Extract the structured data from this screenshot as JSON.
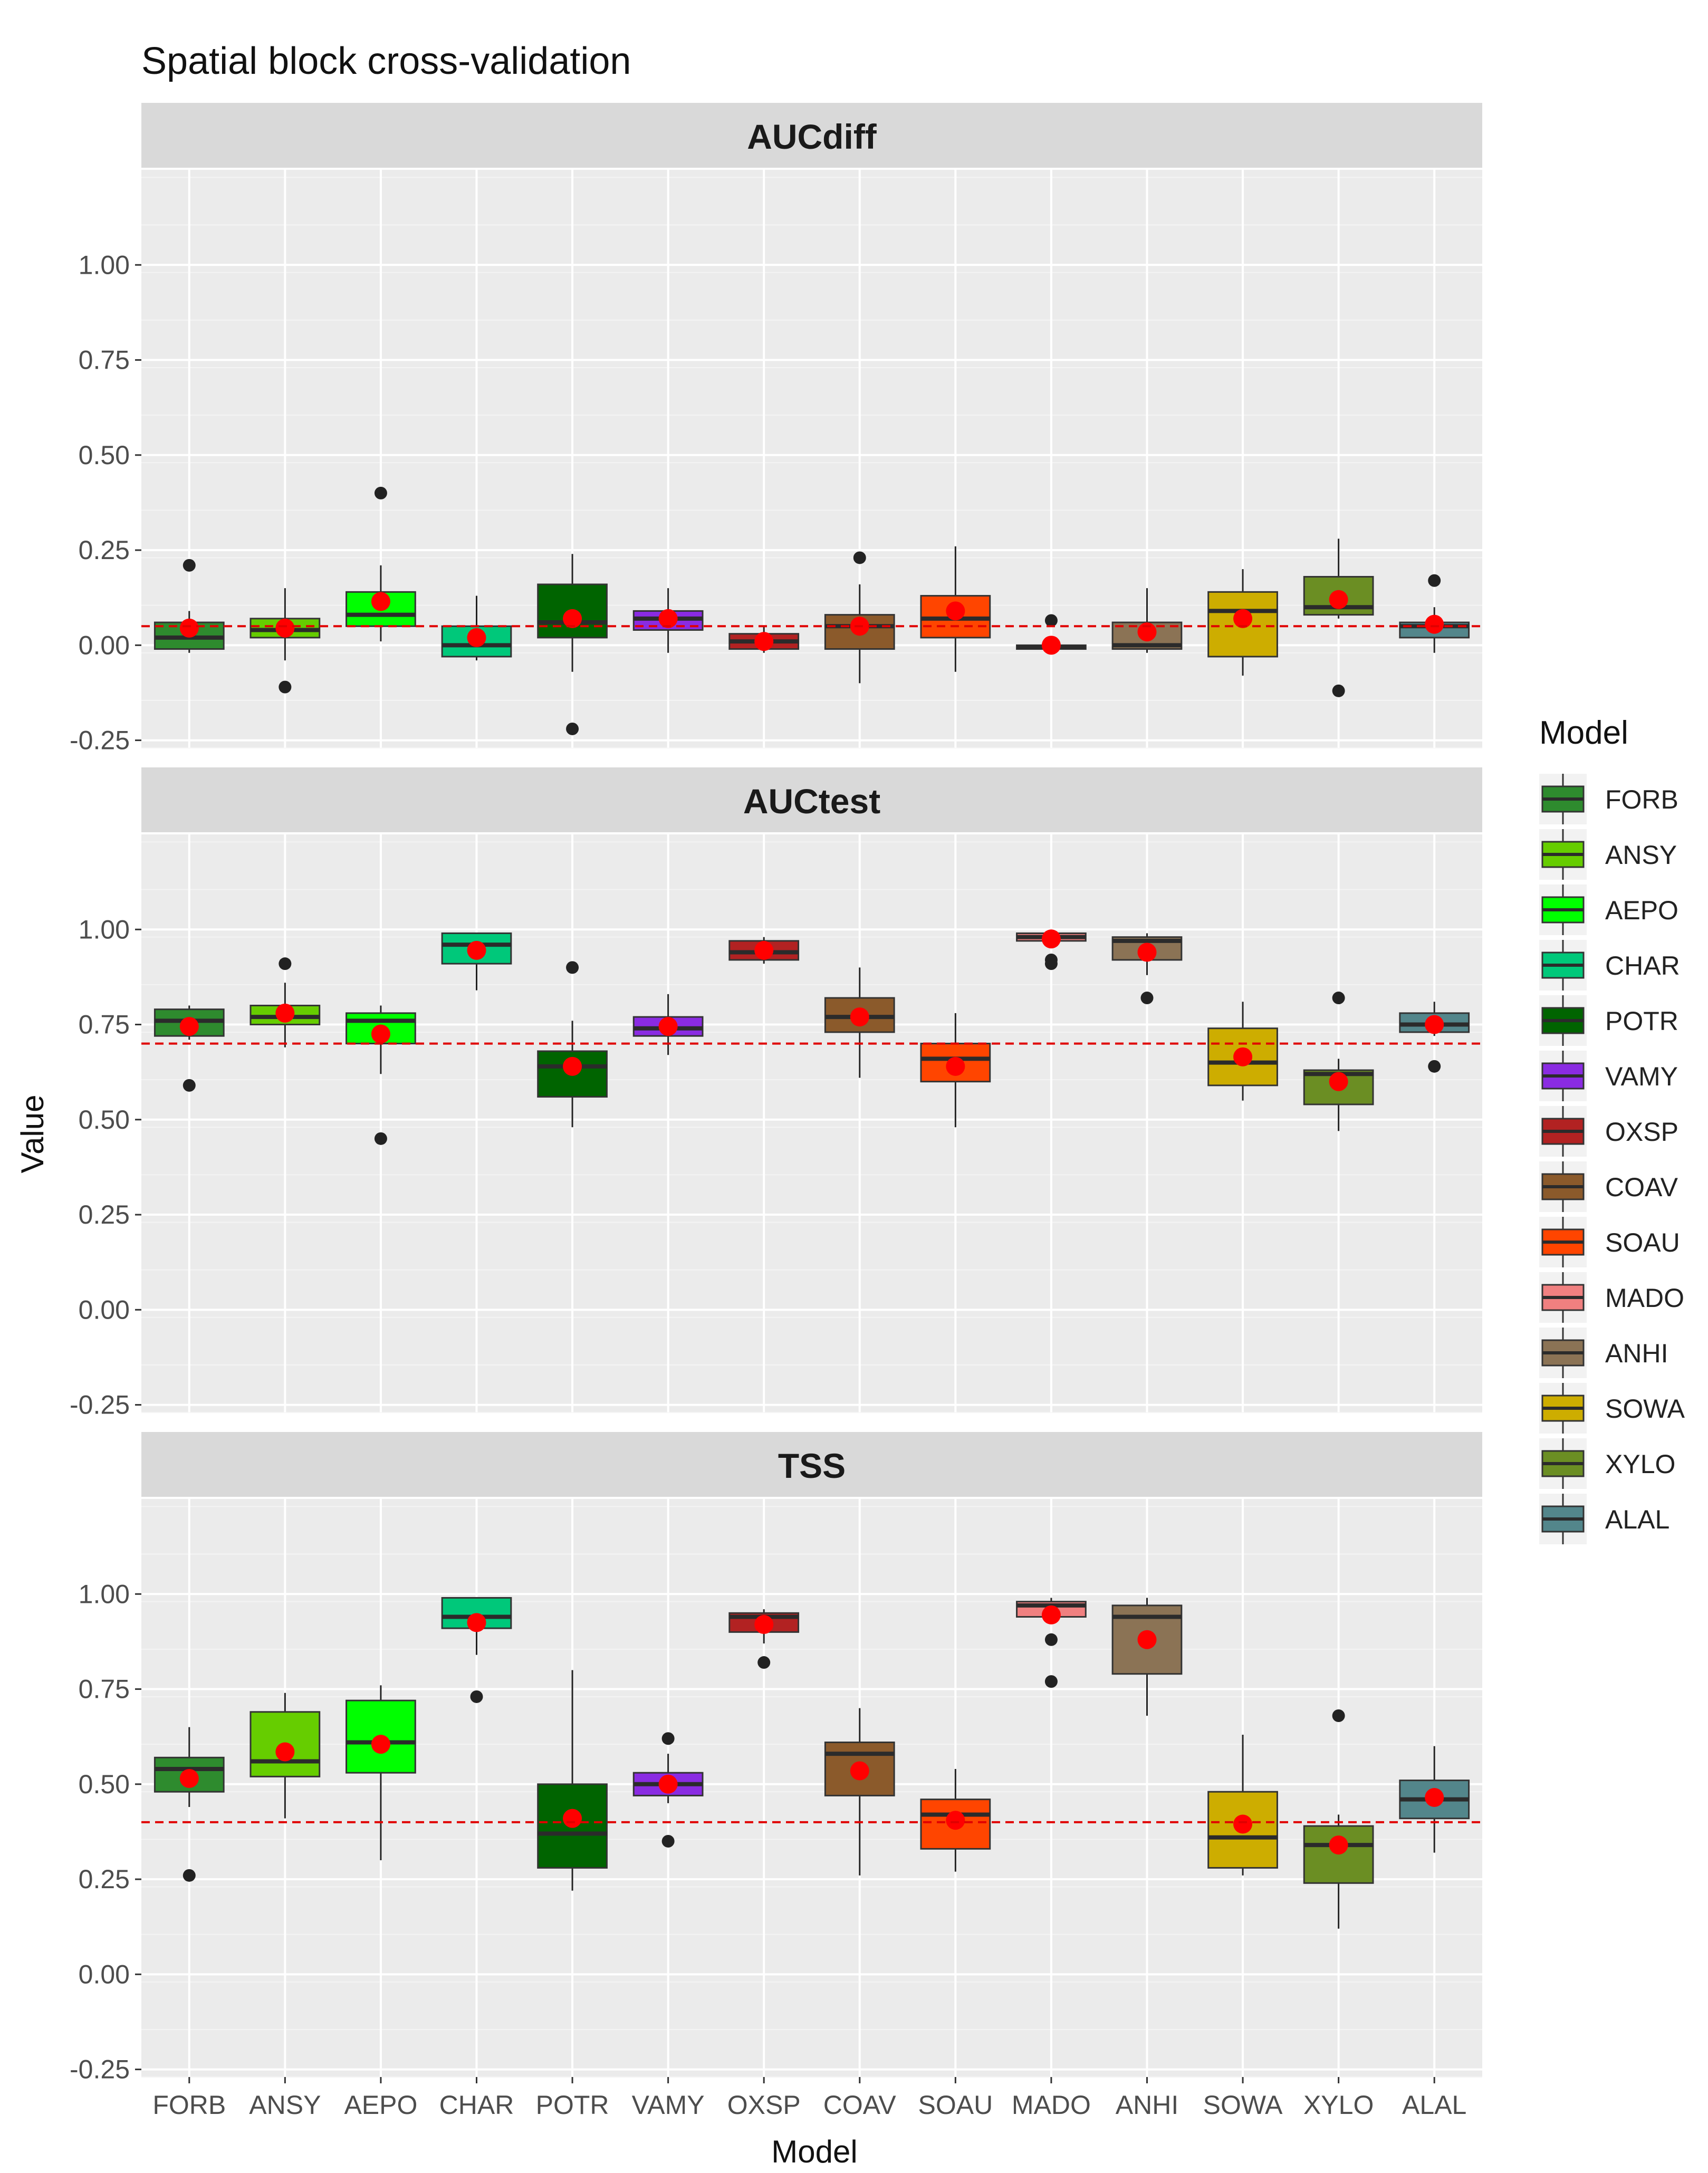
{
  "chart_data": {
    "type": "boxplot",
    "title": "Spatial block cross-validation",
    "xlabel": "Model",
    "ylabel": "Value",
    "ylim": [
      -0.27,
      1.25
    ],
    "yticks": [
      "-0.25",
      "0.00",
      "0.25",
      "0.50",
      "0.75",
      "1.00"
    ],
    "categories": [
      "FORB",
      "ANSY",
      "AEPO",
      "CHAR",
      "POTR",
      "VAMY",
      "OXSP",
      "COAV",
      "SOAU",
      "MADO",
      "ANHI",
      "SOWA",
      "XYLO",
      "ALAL"
    ],
    "colors": [
      "#2e8b2e",
      "#66cd00",
      "#00ff00",
      "#00c87a",
      "#006400",
      "#8a2be2",
      "#b22222",
      "#8b5a2b",
      "#ff4500",
      "#f08080",
      "#8b7355",
      "#cdad00",
      "#6b8e23",
      "#53868b"
    ],
    "legend": {
      "title": "Model",
      "position": "right"
    },
    "panels": [
      {
        "name": "AUCdiff",
        "threshold": 0.05,
        "boxes": [
          {
            "model": "FORB",
            "whislo": -0.02,
            "q1": -0.01,
            "med": 0.02,
            "q3": 0.06,
            "whishi": 0.09,
            "mean": 0.045,
            "outliers": [
              0.21
            ]
          },
          {
            "model": "ANSY",
            "whislo": -0.04,
            "q1": 0.02,
            "med": 0.04,
            "q3": 0.07,
            "whishi": 0.15,
            "mean": 0.045,
            "outliers": [
              -0.11
            ]
          },
          {
            "model": "AEPO",
            "whislo": 0.01,
            "q1": 0.05,
            "med": 0.08,
            "q3": 0.14,
            "whishi": 0.21,
            "mean": 0.115,
            "outliers": [
              0.4
            ]
          },
          {
            "model": "CHAR",
            "whislo": -0.04,
            "q1": -0.03,
            "med": 0.0,
            "q3": 0.05,
            "whishi": 0.13,
            "mean": 0.02,
            "outliers": []
          },
          {
            "model": "POTR",
            "whislo": -0.07,
            "q1": 0.02,
            "med": 0.06,
            "q3": 0.16,
            "whishi": 0.24,
            "mean": 0.07,
            "outliers": [
              -0.22
            ]
          },
          {
            "model": "VAMY",
            "whislo": -0.02,
            "q1": 0.04,
            "med": 0.07,
            "q3": 0.09,
            "whishi": 0.15,
            "mean": 0.07,
            "outliers": []
          },
          {
            "model": "OXSP",
            "whislo": -0.02,
            "q1": -0.01,
            "med": 0.01,
            "q3": 0.03,
            "whishi": 0.05,
            "mean": 0.01,
            "outliers": []
          },
          {
            "model": "COAV",
            "whislo": -0.1,
            "q1": -0.01,
            "med": 0.05,
            "q3": 0.08,
            "whishi": 0.16,
            "mean": 0.05,
            "outliers": [
              0.23
            ]
          },
          {
            "model": "SOAU",
            "whislo": -0.07,
            "q1": 0.02,
            "med": 0.07,
            "q3": 0.13,
            "whishi": 0.26,
            "mean": 0.09,
            "outliers": []
          },
          {
            "model": "MADO",
            "whislo": -0.01,
            "q1": -0.01,
            "med": -0.005,
            "q3": 0.0,
            "whishi": 0.005,
            "mean": 0.0,
            "outliers": [
              0.065
            ]
          },
          {
            "model": "ANHI",
            "whislo": -0.02,
            "q1": -0.01,
            "med": 0.0,
            "q3": 0.06,
            "whishi": 0.15,
            "mean": 0.035,
            "outliers": []
          },
          {
            "model": "SOWA",
            "whislo": -0.08,
            "q1": -0.03,
            "med": 0.09,
            "q3": 0.14,
            "whishi": 0.2,
            "mean": 0.07,
            "outliers": []
          },
          {
            "model": "XYLO",
            "whislo": 0.07,
            "q1": 0.08,
            "med": 0.1,
            "q3": 0.18,
            "whishi": 0.28,
            "mean": 0.12,
            "outliers": [
              -0.12
            ]
          },
          {
            "model": "ALAL",
            "whislo": -0.02,
            "q1": 0.02,
            "med": 0.05,
            "q3": 0.06,
            "whishi": 0.1,
            "mean": 0.055,
            "outliers": [
              0.17
            ]
          }
        ]
      },
      {
        "name": "AUCtest",
        "threshold": 0.7,
        "boxes": [
          {
            "model": "FORB",
            "whislo": 0.71,
            "q1": 0.72,
            "med": 0.76,
            "q3": 0.79,
            "whishi": 0.8,
            "mean": 0.745,
            "outliers": [
              0.59
            ]
          },
          {
            "model": "ANSY",
            "whislo": 0.69,
            "q1": 0.75,
            "med": 0.77,
            "q3": 0.8,
            "whishi": 0.86,
            "mean": 0.78,
            "outliers": [
              0.91
            ]
          },
          {
            "model": "AEPO",
            "whislo": 0.62,
            "q1": 0.7,
            "med": 0.76,
            "q3": 0.78,
            "whishi": 0.8,
            "mean": 0.725,
            "outliers": [
              0.45
            ]
          },
          {
            "model": "CHAR",
            "whislo": 0.84,
            "q1": 0.91,
            "med": 0.96,
            "q3": 0.99,
            "whishi": 0.99,
            "mean": 0.945,
            "outliers": []
          },
          {
            "model": "POTR",
            "whislo": 0.48,
            "q1": 0.56,
            "med": 0.64,
            "q3": 0.68,
            "whishi": 0.76,
            "mean": 0.64,
            "outliers": [
              0.9
            ]
          },
          {
            "model": "VAMY",
            "whislo": 0.67,
            "q1": 0.72,
            "med": 0.74,
            "q3": 0.77,
            "whishi": 0.83,
            "mean": 0.745,
            "outliers": []
          },
          {
            "model": "OXSP",
            "whislo": 0.91,
            "q1": 0.92,
            "med": 0.94,
            "q3": 0.97,
            "whishi": 0.98,
            "mean": 0.945,
            "outliers": []
          },
          {
            "model": "COAV",
            "whislo": 0.61,
            "q1": 0.73,
            "med": 0.77,
            "q3": 0.82,
            "whishi": 0.9,
            "mean": 0.77,
            "outliers": []
          },
          {
            "model": "SOAU",
            "whislo": 0.48,
            "q1": 0.6,
            "med": 0.66,
            "q3": 0.7,
            "whishi": 0.78,
            "mean": 0.64,
            "outliers": []
          },
          {
            "model": "MADO",
            "whislo": 0.96,
            "q1": 0.97,
            "med": 0.98,
            "q3": 0.99,
            "whishi": 0.99,
            "mean": 0.975,
            "outliers": [
              0.91,
              0.92
            ]
          },
          {
            "model": "ANHI",
            "whislo": 0.88,
            "q1": 0.92,
            "med": 0.97,
            "q3": 0.98,
            "whishi": 0.99,
            "mean": 0.94,
            "outliers": [
              0.82
            ]
          },
          {
            "model": "SOWA",
            "whislo": 0.55,
            "q1": 0.59,
            "med": 0.65,
            "q3": 0.74,
            "whishi": 0.81,
            "mean": 0.665,
            "outliers": []
          },
          {
            "model": "XYLO",
            "whislo": 0.47,
            "q1": 0.54,
            "med": 0.62,
            "q3": 0.63,
            "whishi": 0.66,
            "mean": 0.6,
            "outliers": [
              0.82
            ]
          },
          {
            "model": "ALAL",
            "whislo": 0.72,
            "q1": 0.73,
            "med": 0.75,
            "q3": 0.78,
            "whishi": 0.81,
            "mean": 0.75,
            "outliers": [
              0.64
            ]
          }
        ]
      },
      {
        "name": "TSS",
        "threshold": 0.4,
        "boxes": [
          {
            "model": "FORB",
            "whislo": 0.44,
            "q1": 0.48,
            "med": 0.54,
            "q3": 0.57,
            "whishi": 0.65,
            "mean": 0.515,
            "outliers": [
              0.26
            ]
          },
          {
            "model": "ANSY",
            "whislo": 0.41,
            "q1": 0.52,
            "med": 0.56,
            "q3": 0.69,
            "whishi": 0.74,
            "mean": 0.585,
            "outliers": []
          },
          {
            "model": "AEPO",
            "whislo": 0.3,
            "q1": 0.53,
            "med": 0.61,
            "q3": 0.72,
            "whishi": 0.76,
            "mean": 0.605,
            "outliers": []
          },
          {
            "model": "CHAR",
            "whislo": 0.84,
            "q1": 0.91,
            "med": 0.94,
            "q3": 0.99,
            "whishi": 0.99,
            "mean": 0.925,
            "outliers": [
              0.73
            ]
          },
          {
            "model": "POTR",
            "whislo": 0.22,
            "q1": 0.28,
            "med": 0.37,
            "q3": 0.5,
            "whishi": 0.8,
            "mean": 0.41,
            "outliers": []
          },
          {
            "model": "VAMY",
            "whislo": 0.45,
            "q1": 0.47,
            "med": 0.5,
            "q3": 0.53,
            "whishi": 0.58,
            "mean": 0.5,
            "outliers": [
              0.35,
              0.62
            ]
          },
          {
            "model": "OXSP",
            "whislo": 0.87,
            "q1": 0.9,
            "med": 0.94,
            "q3": 0.95,
            "whishi": 0.96,
            "mean": 0.92,
            "outliers": [
              0.82
            ]
          },
          {
            "model": "COAV",
            "whislo": 0.26,
            "q1": 0.47,
            "med": 0.58,
            "q3": 0.61,
            "whishi": 0.7,
            "mean": 0.535,
            "outliers": []
          },
          {
            "model": "SOAU",
            "whislo": 0.27,
            "q1": 0.33,
            "med": 0.42,
            "q3": 0.46,
            "whishi": 0.54,
            "mean": 0.405,
            "outliers": []
          },
          {
            "model": "MADO",
            "whislo": 0.93,
            "q1": 0.94,
            "med": 0.97,
            "q3": 0.98,
            "whishi": 0.99,
            "mean": 0.945,
            "outliers": [
              0.77,
              0.88
            ]
          },
          {
            "model": "ANHI",
            "whislo": 0.68,
            "q1": 0.79,
            "med": 0.94,
            "q3": 0.97,
            "whishi": 0.99,
            "mean": 0.88,
            "outliers": []
          },
          {
            "model": "SOWA",
            "whislo": 0.26,
            "q1": 0.28,
            "med": 0.36,
            "q3": 0.48,
            "whishi": 0.63,
            "mean": 0.395,
            "outliers": []
          },
          {
            "model": "XYLO",
            "whislo": 0.12,
            "q1": 0.24,
            "med": 0.34,
            "q3": 0.39,
            "whishi": 0.42,
            "mean": 0.34,
            "outliers": [
              0.68
            ]
          },
          {
            "model": "ALAL",
            "whislo": 0.32,
            "q1": 0.41,
            "med": 0.46,
            "q3": 0.51,
            "whishi": 0.6,
            "mean": 0.465,
            "outliers": []
          }
        ]
      }
    ]
  }
}
